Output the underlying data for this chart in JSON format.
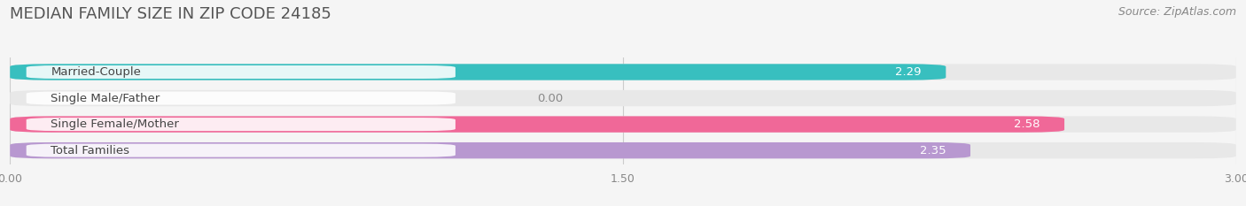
{
  "title": "MEDIAN FAMILY SIZE IN ZIP CODE 24185",
  "source": "Source: ZipAtlas.com",
  "categories": [
    "Married-Couple",
    "Single Male/Father",
    "Single Female/Mother",
    "Total Families"
  ],
  "values": [
    2.29,
    0.0,
    2.58,
    2.35
  ],
  "bar_colors": [
    "#38bfbf",
    "#a8c8f0",
    "#f06898",
    "#b898d0"
  ],
  "bar_bg_color": "#e8e8e8",
  "xlim": [
    0,
    3.0
  ],
  "xticks": [
    0.0,
    1.5,
    3.0
  ],
  "xtick_labels": [
    "0.00",
    "1.50",
    "3.00"
  ],
  "background_color": "#f5f5f5",
  "title_fontsize": 13,
  "label_fontsize": 9.5,
  "value_fontsize": 9.5,
  "source_fontsize": 9
}
